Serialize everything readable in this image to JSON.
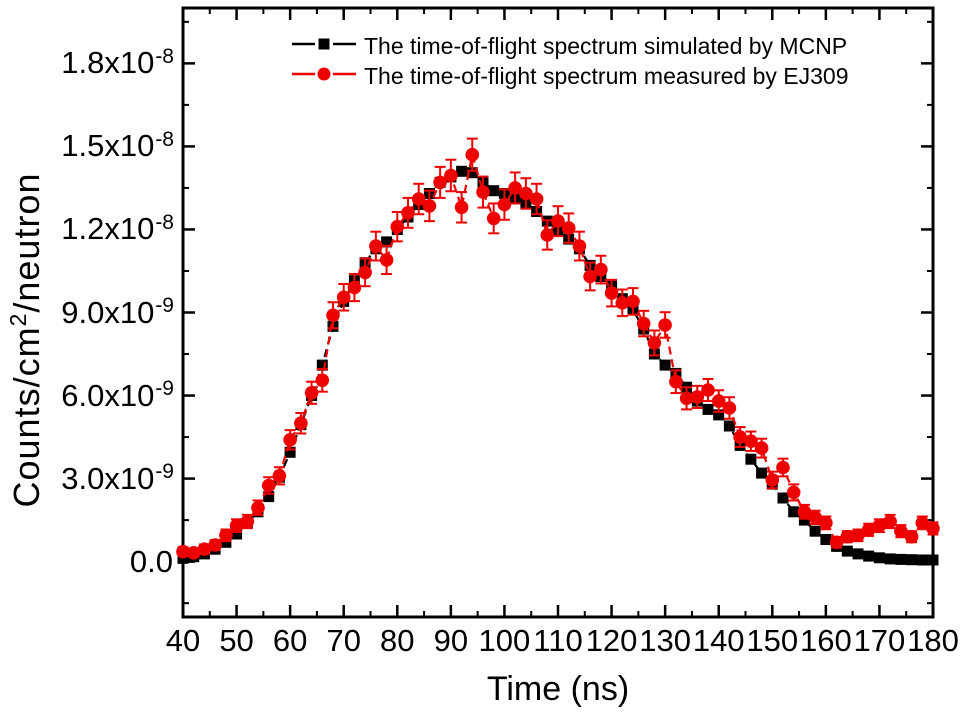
{
  "chart_data": {
    "type": "line",
    "title": "",
    "xlabel": "Time (ns)",
    "ylabel": "Counts/cm2/neutron",
    "ylabel_parts": {
      "pre": "Counts/cm",
      "sup": "2",
      "post": "/neutron"
    },
    "grid": false,
    "legend_position": "top-inside",
    "xlim": [
      40,
      180
    ],
    "ylim_e9": [
      -2,
      20
    ],
    "value_scale_note": "values_e9 and errors_e9 are in units of 1e-9 counts/cm2/neutron",
    "x_major_ticks": [
      40,
      50,
      60,
      70,
      80,
      90,
      100,
      110,
      120,
      130,
      140,
      150,
      160,
      170,
      180
    ],
    "x_tick_labels": [
      "40",
      "50",
      "60",
      "70",
      "80",
      "90",
      "100",
      "110",
      "120",
      "130",
      "140",
      "150",
      "160",
      "170",
      "180"
    ],
    "x_minor_step": 5,
    "y_major_step_e9": 3,
    "y_minor_step_e9": 1.5,
    "y_ticks": [
      {
        "value_e9": 0,
        "mant": "0.0",
        "exp": ""
      },
      {
        "value_e9": 3,
        "mant": "3.0x10",
        "exp": "-9"
      },
      {
        "value_e9": 6,
        "mant": "6.0x10",
        "exp": "-9"
      },
      {
        "value_e9": 9,
        "mant": "9.0x10",
        "exp": "-9"
      },
      {
        "value_e9": 12,
        "mant": "1.2x10",
        "exp": "-8"
      },
      {
        "value_e9": 15,
        "mant": "1.5x10",
        "exp": "-8"
      },
      {
        "value_e9": 18,
        "mant": "1.8x10",
        "exp": "-8"
      }
    ],
    "x": [
      40,
      42,
      44,
      46,
      48,
      50,
      52,
      54,
      56,
      58,
      60,
      62,
      64,
      66,
      68,
      70,
      72,
      74,
      76,
      78,
      80,
      82,
      84,
      86,
      88,
      90,
      92,
      94,
      96,
      98,
      100,
      102,
      104,
      106,
      108,
      110,
      112,
      114,
      116,
      118,
      120,
      122,
      124,
      126,
      128,
      130,
      132,
      134,
      136,
      138,
      140,
      142,
      144,
      146,
      148,
      150,
      152,
      154,
      156,
      158,
      160,
      162,
      164,
      166,
      168,
      170,
      172,
      174,
      176,
      178,
      180
    ],
    "series": [
      {
        "name": "The time-of-flight spectrum simulated by MCNP",
        "color": "#000000",
        "marker": "square",
        "line_style": "dashed",
        "values_e9": [
          0.12,
          0.18,
          0.28,
          0.45,
          0.7,
          1.0,
          1.4,
          1.8,
          2.35,
          3.05,
          3.95,
          4.95,
          6.0,
          7.1,
          8.5,
          9.4,
          10.15,
          10.8,
          11.3,
          11.55,
          12.0,
          12.45,
          12.9,
          13.3,
          13.7,
          13.9,
          14.1,
          14.05,
          13.7,
          13.4,
          13.3,
          13.1,
          12.95,
          12.65,
          12.3,
          11.95,
          11.65,
          11.3,
          10.7,
          10.3,
          9.95,
          9.5,
          9.1,
          8.4,
          7.5,
          7.1,
          6.8,
          6.3,
          5.8,
          5.5,
          5.3,
          4.9,
          4.2,
          3.7,
          3.2,
          2.8,
          2.3,
          1.8,
          1.5,
          1.1,
          0.8,
          0.55,
          0.38,
          0.28,
          0.2,
          0.14,
          0.1,
          0.08,
          0.07,
          0.06,
          0.06
        ]
      },
      {
        "name": "The time-of-flight spectrum measured by EJ309",
        "color": "#ee0000",
        "marker": "circle",
        "line_style": "dashed",
        "values_e9": [
          0.36,
          0.32,
          0.45,
          0.6,
          0.95,
          1.3,
          1.45,
          1.95,
          2.75,
          3.1,
          4.4,
          5.0,
          6.1,
          6.55,
          8.9,
          9.55,
          9.9,
          10.45,
          11.4,
          10.9,
          12.1,
          12.6,
          13.1,
          12.85,
          13.7,
          13.95,
          12.8,
          14.7,
          13.35,
          12.4,
          12.9,
          13.5,
          13.3,
          13.1,
          11.8,
          12.3,
          12.05,
          11.4,
          10.3,
          10.55,
          9.7,
          9.35,
          9.4,
          8.6,
          7.9,
          8.55,
          6.5,
          5.9,
          5.95,
          6.2,
          5.8,
          5.55,
          4.5,
          4.35,
          4.1,
          2.95,
          3.4,
          2.5,
          1.8,
          1.6,
          1.4,
          0.7,
          0.9,
          0.95,
          1.15,
          1.3,
          1.45,
          1.1,
          0.9,
          1.4,
          1.2
        ],
        "errors_e9": [
          0.16,
          0.15,
          0.17,
          0.18,
          0.21,
          0.23,
          0.24,
          0.26,
          0.3,
          0.31,
          0.35,
          0.37,
          0.4,
          0.41,
          0.47,
          0.48,
          0.49,
          0.5,
          0.52,
          0.51,
          0.53,
          0.54,
          0.55,
          0.55,
          0.56,
          0.57,
          0.55,
          0.58,
          0.56,
          0.54,
          0.55,
          0.56,
          0.55,
          0.55,
          0.53,
          0.54,
          0.53,
          0.52,
          0.5,
          0.5,
          0.48,
          0.48,
          0.48,
          0.46,
          0.45,
          0.46,
          0.41,
          0.4,
          0.4,
          0.4,
          0.39,
          0.39,
          0.36,
          0.35,
          0.34,
          0.3,
          0.32,
          0.29,
          0.25,
          0.24,
          0.23,
          0.19,
          0.2,
          0.21,
          0.22,
          0.23,
          0.24,
          0.22,
          0.2,
          0.23,
          0.22
        ]
      }
    ],
    "frame_color": "#000000",
    "background_color": "#ffffff"
  }
}
